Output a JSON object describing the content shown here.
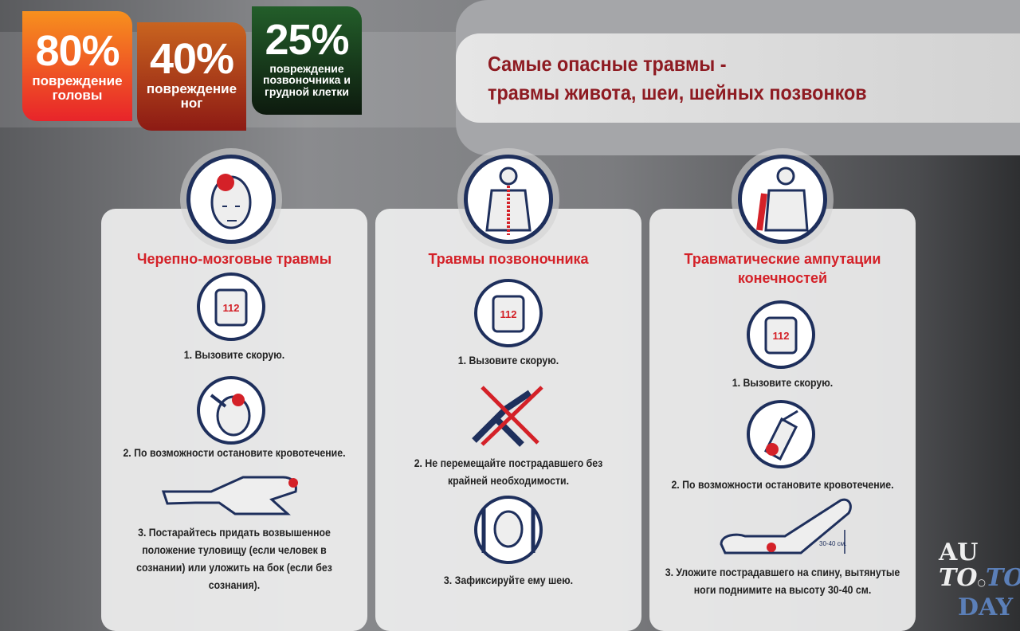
{
  "stats": [
    {
      "value": "80%",
      "label": "повреждение головы",
      "color": "#e8242a"
    },
    {
      "value": "40%",
      "label": "повреждение ног",
      "color": "#8d1a14"
    },
    {
      "value": "25%",
      "label": "повреждение позвоночника и грудной клетки",
      "color": "#235e2a"
    }
  ],
  "header": {
    "line1": "Самые опасные травмы -",
    "line2": "травмы живота, шеи, шейных позвонков"
  },
  "columns": [
    {
      "title": "Черепно-мозговые травмы",
      "icon": "head-injury-icon",
      "steps": [
        {
          "icon": "phone-112-icon",
          "phone_text": "112",
          "text": "1. Вызовите скорую."
        },
        {
          "icon": "bandage-head-icon",
          "text": "2. По возможности остановите кровотечение."
        },
        {
          "icon": "recovery-position-icon",
          "text": "3. Постарайтесь придать возвышенное положение туловищу (если человек в сознании) или уложить на бок (если без сознания)."
        }
      ]
    },
    {
      "title": "Травмы позвоночника",
      "icon": "spine-icon",
      "steps": [
        {
          "icon": "phone-112-icon",
          "phone_text": "112",
          "text": "1. Вызовите скорую."
        },
        {
          "icon": "do-not-move-icon",
          "text": "2. Не перемещайте пострадавшего без крайней необходимости."
        },
        {
          "icon": "neck-fixation-icon",
          "text": "3. Зафиксируйте ему шею."
        }
      ]
    },
    {
      "title": "Травматические ампутации конечностей",
      "icon": "amputation-icon",
      "steps": [
        {
          "icon": "phone-112-icon",
          "phone_text": "112",
          "text": "1. Вызовите скорую."
        },
        {
          "icon": "tourniquet-icon",
          "text": "2. По возможности остановите кровотечение."
        },
        {
          "icon": "legs-raised-icon",
          "measure": "30-40 см.",
          "text": "3. Уложите пострадавшего на спину, вытянутые ноги поднимите на высоту 30-40 см."
        }
      ]
    }
  ],
  "logo": {
    "l1": "AU",
    "l2a": "TO",
    "l2b": "TO",
    "l3": "DAY"
  },
  "colors": {
    "accent_red": "#d42128",
    "navy": "#1e2f5c",
    "title_dark_red": "#8e1b22"
  }
}
